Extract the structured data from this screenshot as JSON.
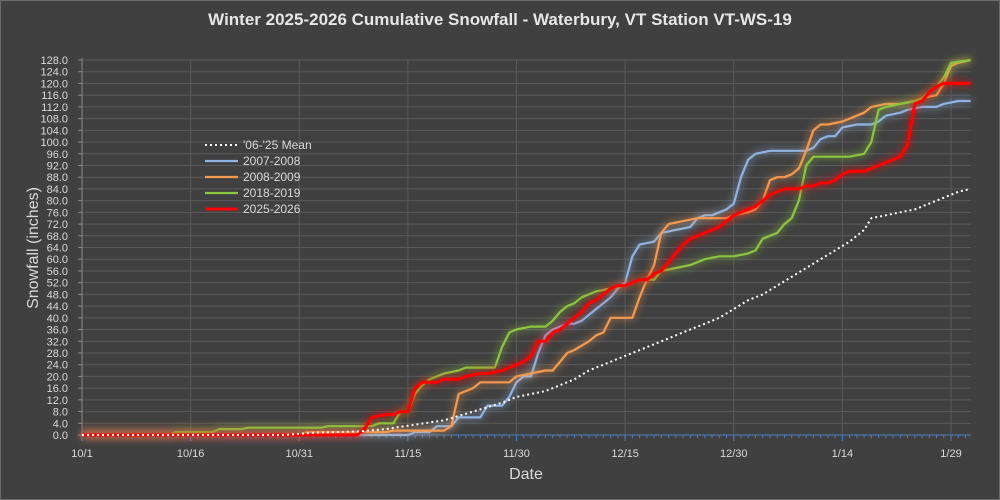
{
  "chart_data": {
    "type": "line",
    "title": "Winter 2025-2026 Cumulative Snowfall - Waterbury, VT Station VT-WS-19",
    "xlabel": "Date",
    "ylabel": "Snowfall (inches)",
    "ylim": [
      0,
      128
    ],
    "ytick_step": 4,
    "yticks": [
      "0.0",
      "4.0",
      "8.0",
      "12.0",
      "16.0",
      "20.0",
      "24.0",
      "28.0",
      "32.0",
      "36.0",
      "40.0",
      "44.0",
      "48.0",
      "52.0",
      "56.0",
      "60.0",
      "64.0",
      "68.0",
      "72.0",
      "76.0",
      "80.0",
      "84.0",
      "88.0",
      "92.0",
      "96.0",
      "100.0",
      "104.0",
      "108.0",
      "112.0",
      "116.0",
      "120.0",
      "124.0",
      "128.0"
    ],
    "x_unit": "days since 10/1",
    "xlim": [
      0,
      122.7
    ],
    "xticks": [
      {
        "day": 0,
        "label": "10/1"
      },
      {
        "day": 15,
        "label": "10/16"
      },
      {
        "day": 30,
        "label": "10/31"
      },
      {
        "day": 45,
        "label": "11/15"
      },
      {
        "day": 60,
        "label": "11/30"
      },
      {
        "day": 75,
        "label": "12/15"
      },
      {
        "day": 90,
        "label": "12/30"
      },
      {
        "day": 105,
        "label": "1/14"
      },
      {
        "day": 120,
        "label": "1/29"
      }
    ],
    "grid": true,
    "legend_position": "upper-left",
    "series": [
      {
        "name": "'06-'25 Mean",
        "color": "#ffffff",
        "style": "dotted",
        "points": [
          [
            0,
            0
          ],
          [
            28,
            0
          ],
          [
            32,
            0.8
          ],
          [
            38,
            1.2
          ],
          [
            42,
            2
          ],
          [
            44,
            2.8
          ],
          [
            46,
            3.5
          ],
          [
            48,
            4.3
          ],
          [
            50,
            5
          ],
          [
            52,
            6.5
          ],
          [
            54,
            8
          ],
          [
            56,
            9.5
          ],
          [
            58,
            11
          ],
          [
            60,
            13
          ],
          [
            62,
            14
          ],
          [
            64,
            15
          ],
          [
            66,
            17
          ],
          [
            68,
            19
          ],
          [
            70,
            22
          ],
          [
            72,
            24
          ],
          [
            74,
            26
          ],
          [
            76,
            28
          ],
          [
            78,
            30
          ],
          [
            80,
            32
          ],
          [
            82,
            34
          ],
          [
            84,
            36
          ],
          [
            86,
            38
          ],
          [
            88,
            40
          ],
          [
            90,
            43
          ],
          [
            92,
            46
          ],
          [
            94,
            48
          ],
          [
            96,
            51
          ],
          [
            98,
            54
          ],
          [
            100,
            57
          ],
          [
            102,
            60
          ],
          [
            104,
            63
          ],
          [
            106,
            66
          ],
          [
            108,
            70
          ],
          [
            109,
            74
          ],
          [
            111,
            75
          ],
          [
            113,
            76
          ],
          [
            115,
            77
          ],
          [
            117,
            79
          ],
          [
            119,
            81
          ],
          [
            121,
            83
          ],
          [
            122.7,
            84
          ]
        ]
      },
      {
        "name": "2007-2008",
        "color": "#8fb4e3",
        "style": "solid",
        "points": [
          [
            0,
            0
          ],
          [
            45,
            0
          ],
          [
            46,
            1
          ],
          [
            48,
            1
          ],
          [
            49,
            3
          ],
          [
            51,
            3
          ],
          [
            52,
            6
          ],
          [
            55,
            6
          ],
          [
            56,
            10
          ],
          [
            58,
            10
          ],
          [
            59,
            13
          ],
          [
            60,
            18
          ],
          [
            61,
            20
          ],
          [
            62,
            20
          ],
          [
            63,
            28
          ],
          [
            64,
            34
          ],
          [
            65,
            36
          ],
          [
            66,
            37
          ],
          [
            67,
            38
          ],
          [
            68,
            38
          ],
          [
            69,
            39
          ],
          [
            70,
            41
          ],
          [
            71,
            43
          ],
          [
            72,
            45
          ],
          [
            73,
            47
          ],
          [
            74,
            50
          ],
          [
            75,
            52
          ],
          [
            76,
            61
          ],
          [
            77,
            65
          ],
          [
            79,
            66
          ],
          [
            80,
            69
          ],
          [
            82,
            70
          ],
          [
            84,
            71
          ],
          [
            85,
            74
          ],
          [
            86,
            75
          ],
          [
            87,
            75
          ],
          [
            88,
            76
          ],
          [
            89,
            77
          ],
          [
            90,
            79
          ],
          [
            91,
            88
          ],
          [
            92,
            94
          ],
          [
            93,
            96
          ],
          [
            95,
            97
          ],
          [
            98,
            97
          ],
          [
            100,
            97
          ],
          [
            101,
            98
          ],
          [
            102,
            101
          ],
          [
            103,
            102
          ],
          [
            104,
            102
          ],
          [
            105,
            105
          ],
          [
            107,
            106
          ],
          [
            109,
            106
          ],
          [
            110,
            107
          ],
          [
            111,
            109
          ],
          [
            113,
            110
          ],
          [
            114,
            111
          ],
          [
            116,
            112
          ],
          [
            118,
            112
          ],
          [
            119,
            113
          ],
          [
            121,
            114
          ],
          [
            122.7,
            114
          ]
        ]
      },
      {
        "name": "2008-2009",
        "color": "#f59a4f",
        "style": "solid",
        "points": [
          [
            0,
            0
          ],
          [
            30,
            0
          ],
          [
            31,
            1
          ],
          [
            42,
            1
          ],
          [
            43,
            1.5
          ],
          [
            50,
            1.5
          ],
          [
            51,
            3
          ],
          [
            52,
            14
          ],
          [
            53,
            15
          ],
          [
            54,
            16
          ],
          [
            55,
            18
          ],
          [
            59,
            18
          ],
          [
            60,
            20
          ],
          [
            62,
            21
          ],
          [
            64,
            22
          ],
          [
            65,
            22
          ],
          [
            66,
            25
          ],
          [
            67,
            28
          ],
          [
            68,
            29
          ],
          [
            70,
            32
          ],
          [
            71,
            34
          ],
          [
            72,
            35
          ],
          [
            73,
            40
          ],
          [
            75,
            40
          ],
          [
            76,
            40
          ],
          [
            77,
            47
          ],
          [
            78,
            53
          ],
          [
            79,
            58
          ],
          [
            80,
            69
          ],
          [
            81,
            72
          ],
          [
            83,
            73
          ],
          [
            85,
            74
          ],
          [
            86,
            74
          ],
          [
            89,
            74
          ],
          [
            90,
            75
          ],
          [
            92,
            76
          ],
          [
            93,
            77
          ],
          [
            94,
            80
          ],
          [
            95,
            87
          ],
          [
            96,
            88
          ],
          [
            97,
            88
          ],
          [
            98,
            89
          ],
          [
            99,
            91
          ],
          [
            100,
            97
          ],
          [
            101,
            104
          ],
          [
            102,
            106
          ],
          [
            103,
            106
          ],
          [
            105,
            107
          ],
          [
            106,
            108
          ],
          [
            108,
            110
          ],
          [
            109,
            112
          ],
          [
            111,
            113
          ],
          [
            113,
            113
          ],
          [
            115,
            114
          ],
          [
            116,
            115
          ],
          [
            118,
            116
          ],
          [
            119,
            120
          ],
          [
            120,
            126
          ],
          [
            121,
            127
          ],
          [
            122.7,
            128
          ]
        ]
      },
      {
        "name": "2018-2019",
        "color": "#8cc63f",
        "style": "solid",
        "points": [
          [
            0,
            0
          ],
          [
            12,
            0
          ],
          [
            13,
            1
          ],
          [
            18,
            1
          ],
          [
            19,
            2
          ],
          [
            22,
            2
          ],
          [
            23,
            2.5
          ],
          [
            33,
            2.5
          ],
          [
            34,
            3
          ],
          [
            40,
            3
          ],
          [
            41,
            4
          ],
          [
            43,
            4
          ],
          [
            44,
            8
          ],
          [
            45,
            8
          ],
          [
            46,
            14
          ],
          [
            47,
            17
          ],
          [
            48,
            19
          ],
          [
            50,
            21
          ],
          [
            52,
            22
          ],
          [
            53,
            23
          ],
          [
            57,
            23
          ],
          [
            58,
            30
          ],
          [
            59,
            35
          ],
          [
            60,
            36
          ],
          [
            62,
            37
          ],
          [
            64,
            37
          ],
          [
            65,
            39
          ],
          [
            66,
            42
          ],
          [
            67,
            44
          ],
          [
            68,
            45
          ],
          [
            69,
            47
          ],
          [
            70,
            48
          ],
          [
            71,
            49
          ],
          [
            73,
            50
          ],
          [
            75,
            51
          ],
          [
            76,
            52
          ],
          [
            77,
            53
          ],
          [
            79,
            53
          ],
          [
            80,
            56
          ],
          [
            82,
            57
          ],
          [
            84,
            58
          ],
          [
            86,
            60
          ],
          [
            88,
            61
          ],
          [
            90,
            61
          ],
          [
            92,
            62
          ],
          [
            93,
            63
          ],
          [
            94,
            67
          ],
          [
            95,
            68
          ],
          [
            96,
            69
          ],
          [
            97,
            72
          ],
          [
            98,
            74
          ],
          [
            99,
            80
          ],
          [
            100,
            92
          ],
          [
            101,
            95
          ],
          [
            103,
            95
          ],
          [
            106,
            95
          ],
          [
            108,
            96
          ],
          [
            109,
            100
          ],
          [
            110,
            111
          ],
          [
            111,
            112
          ],
          [
            113,
            113
          ],
          [
            115,
            114
          ],
          [
            116,
            115
          ],
          [
            117,
            117
          ],
          [
            118,
            119
          ],
          [
            119,
            122
          ],
          [
            120,
            127
          ],
          [
            122.7,
            128
          ]
        ]
      },
      {
        "name": "2025-2026",
        "color": "#ff0000",
        "style": "solid",
        "points": [
          [
            0,
            0
          ],
          [
            38,
            0
          ],
          [
            39,
            2
          ],
          [
            40,
            6
          ],
          [
            42,
            7
          ],
          [
            43,
            7
          ],
          [
            44,
            8
          ],
          [
            45,
            8
          ],
          [
            46,
            16
          ],
          [
            47,
            18
          ],
          [
            49,
            18
          ],
          [
            50,
            19
          ],
          [
            52,
            19
          ],
          [
            53,
            20
          ],
          [
            55,
            21
          ],
          [
            56,
            21
          ],
          [
            58,
            22
          ],
          [
            59,
            23
          ],
          [
            60,
            24
          ],
          [
            61,
            25
          ],
          [
            62,
            27
          ],
          [
            63,
            32
          ],
          [
            64,
            32
          ],
          [
            65,
            35
          ],
          [
            66,
            36
          ],
          [
            67,
            38
          ],
          [
            68,
            40
          ],
          [
            69,
            42
          ],
          [
            70,
            45
          ],
          [
            71,
            46
          ],
          [
            72,
            48
          ],
          [
            73,
            50
          ],
          [
            74,
            51
          ],
          [
            75,
            51
          ],
          [
            76,
            52
          ],
          [
            77,
            53
          ],
          [
            78,
            53
          ],
          [
            79,
            55
          ],
          [
            80,
            56
          ],
          [
            81,
            59
          ],
          [
            82,
            62
          ],
          [
            83,
            65
          ],
          [
            84,
            67
          ],
          [
            85,
            68
          ],
          [
            86,
            69
          ],
          [
            87,
            70
          ],
          [
            88,
            71
          ],
          [
            89,
            73
          ],
          [
            90,
            75
          ],
          [
            91,
            76
          ],
          [
            92,
            77
          ],
          [
            93,
            78
          ],
          [
            94,
            80
          ],
          [
            95,
            82
          ],
          [
            96,
            83
          ],
          [
            97,
            84
          ],
          [
            98,
            84
          ],
          [
            99,
            84
          ],
          [
            100,
            85
          ],
          [
            101,
            85
          ],
          [
            102,
            86
          ],
          [
            103,
            86
          ],
          [
            104,
            87
          ],
          [
            105,
            89
          ],
          [
            106,
            90
          ],
          [
            107,
            90
          ],
          [
            108,
            90
          ],
          [
            109,
            91
          ],
          [
            110,
            92
          ],
          [
            111,
            93
          ],
          [
            112,
            94
          ],
          [
            113,
            95
          ],
          [
            114,
            99
          ],
          [
            115,
            113
          ],
          [
            116,
            114
          ],
          [
            117,
            117
          ],
          [
            118,
            119
          ],
          [
            119,
            120
          ],
          [
            120,
            120
          ],
          [
            122.7,
            120
          ]
        ]
      }
    ]
  }
}
